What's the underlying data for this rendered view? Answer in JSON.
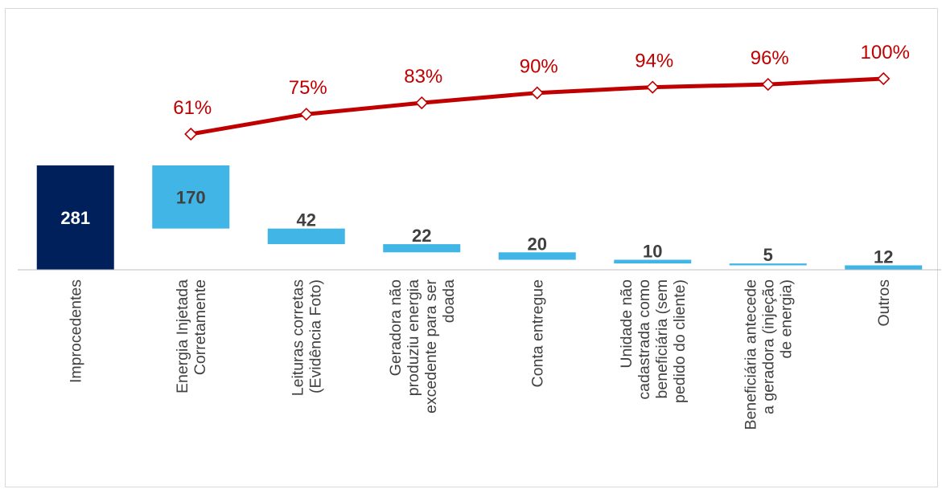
{
  "chart_data": {
    "type": "bar",
    "subtype": "waterfall-pareto",
    "title": "",
    "xlabel": "",
    "ylabel": "",
    "categories": [
      "Improcedentes",
      "Energia Injetada Corretamente",
      "Leituras corretas (Evidência Foto)",
      "Geradora não produziu energia excedente para ser doada",
      "Conta entregue",
      "Unidade não cadastrada como beneficiária (sem pedido do cliente)",
      "Beneficiária antecede a geradora (injeção de energia)",
      "Outros"
    ],
    "category_lines": [
      [
        "Improcedentes"
      ],
      [
        "Energia Injetada",
        "Corretamente"
      ],
      [
        "Leituras corretas",
        "(Evidência Foto)"
      ],
      [
        "Geradora não",
        "produziu energia",
        "excedente para ser",
        "doada"
      ],
      [
        "Conta entregue"
      ],
      [
        "Unidade não",
        "cadastrada como",
        "beneficiária (sem",
        "pedido do cliente)"
      ],
      [
        "Beneficiária antecede",
        "a geradora (injeção",
        "de energia)"
      ],
      [
        "Outros"
      ]
    ],
    "values": [
      281,
      170,
      42,
      22,
      20,
      10,
      5,
      12
    ],
    "value_labels": [
      "281",
      "170",
      "42",
      "22",
      "20",
      "10",
      "5",
      "12"
    ],
    "total_index": 0,
    "cumulative_pct": [
      null,
      61,
      75,
      83,
      90,
      94,
      96,
      100
    ],
    "cumulative_labels": [
      "",
      "61%",
      "75%",
      "83%",
      "90%",
      "94%",
      "96%",
      "100%"
    ],
    "ylim": [
      0,
      281
    ],
    "pct_ylim": [
      61,
      100
    ],
    "grid": false,
    "legend": "none",
    "colors": {
      "total_bar": "#00205b",
      "step_bar": "#41b6e6",
      "line": "#c00000",
      "marker_fill": "#ffffff",
      "label_dark": "#404040",
      "label_light": "#ffffff",
      "axis": "#bfbfbf",
      "category_text": "#404040"
    }
  }
}
